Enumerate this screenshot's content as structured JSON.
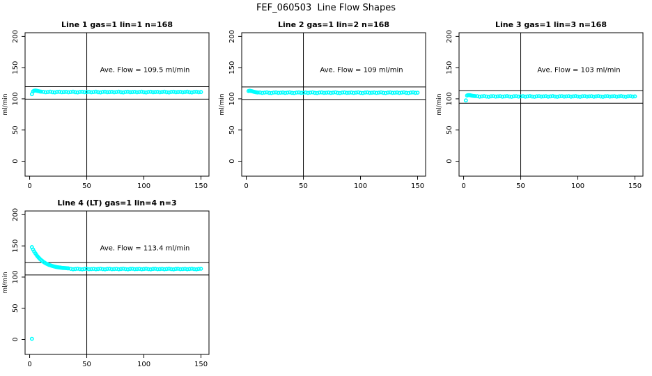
{
  "title": "FEF_060503  Line Flow Shapes",
  "colors": {
    "point": "#00FFFF",
    "line": "#000000",
    "background": "#FFFFFF"
  },
  "axes": {
    "x_ticks": [
      0,
      50,
      100,
      150
    ],
    "y_ticks": [
      0,
      50,
      100,
      150,
      200
    ],
    "xlim": [
      -4,
      157
    ],
    "ylim": [
      -24,
      206
    ],
    "y_label": "ml/min",
    "grid": false
  },
  "chart_data": [
    {
      "type": "scatter",
      "title": "Line 1 gas=1 lin=1 n=168",
      "annotation": "Ave. Flow =  109.5  ml/min",
      "ave_flow": 109.5,
      "n": 168,
      "hlines": [
        99.5,
        119.5
      ],
      "vline": 50,
      "ylabel": "ml/min",
      "points": [
        [
          2,
          107.5
        ],
        [
          3,
          112
        ],
        [
          4,
          113
        ],
        [
          5,
          113.3
        ],
        [
          6,
          113
        ],
        [
          7,
          112.5
        ],
        [
          8,
          112.2
        ],
        [
          9,
          111.8
        ],
        [
          10,
          111.5
        ],
        [
          12,
          111.2
        ],
        [
          14,
          110.5
        ],
        [
          16,
          111
        ],
        [
          18,
          111.4
        ],
        [
          20,
          110.7
        ],
        [
          22,
          110.3
        ],
        [
          24,
          111.1
        ],
        [
          26,
          111.3
        ],
        [
          28,
          110.6
        ],
        [
          30,
          110.9
        ],
        [
          32,
          111.2
        ],
        [
          34,
          110.5
        ],
        [
          36,
          111
        ],
        [
          38,
          111.4
        ],
        [
          40,
          110.7
        ],
        [
          42,
          110.3
        ],
        [
          44,
          111.1
        ],
        [
          46,
          111.3
        ],
        [
          48,
          110.6
        ],
        [
          50,
          110.9
        ],
        [
          52,
          111.2
        ],
        [
          54,
          110.5
        ],
        [
          56,
          111
        ],
        [
          58,
          111.4
        ],
        [
          60,
          110.7
        ],
        [
          62,
          110.3
        ],
        [
          64,
          111.1
        ],
        [
          66,
          111.3
        ],
        [
          68,
          110.6
        ],
        [
          70,
          110.9
        ],
        [
          72,
          111.2
        ],
        [
          74,
          110.5
        ],
        [
          76,
          111
        ],
        [
          78,
          111.4
        ],
        [
          80,
          110.7
        ],
        [
          82,
          110.3
        ],
        [
          84,
          111.1
        ],
        [
          86,
          111.3
        ],
        [
          88,
          110.6
        ],
        [
          90,
          110.9
        ],
        [
          92,
          111.2
        ],
        [
          94,
          110.5
        ],
        [
          96,
          111
        ],
        [
          98,
          111.4
        ],
        [
          100,
          110.7
        ],
        [
          102,
          110.3
        ],
        [
          104,
          111.1
        ],
        [
          106,
          111.3
        ],
        [
          108,
          110.6
        ],
        [
          110,
          110.9
        ],
        [
          112,
          111.2
        ],
        [
          114,
          110.5
        ],
        [
          116,
          111
        ],
        [
          118,
          111.4
        ],
        [
          120,
          110.7
        ],
        [
          122,
          110.3
        ],
        [
          124,
          111.1
        ],
        [
          126,
          111.3
        ],
        [
          128,
          110.6
        ],
        [
          130,
          110.9
        ],
        [
          132,
          111.2
        ],
        [
          134,
          110.5
        ],
        [
          136,
          111
        ],
        [
          138,
          111.4
        ],
        [
          140,
          110.7
        ],
        [
          142,
          110.3
        ],
        [
          144,
          111.1
        ],
        [
          146,
          111.3
        ],
        [
          148,
          110.6
        ],
        [
          150,
          110.9
        ]
      ]
    },
    {
      "type": "scatter",
      "title": "Line 2 gas=1 lin=2 n=168",
      "annotation": "Ave. Flow =  109  ml/min",
      "ave_flow": 109,
      "n": 168,
      "hlines": [
        99,
        119
      ],
      "vline": 50,
      "ylabel": "ml/min",
      "points": [
        [
          2,
          112.6
        ],
        [
          3,
          113
        ],
        [
          4,
          112.6
        ],
        [
          5,
          112.2
        ],
        [
          6,
          111.7
        ],
        [
          7,
          111.2
        ],
        [
          8,
          110.8
        ],
        [
          9,
          110.4
        ],
        [
          10,
          110.2
        ],
        [
          12,
          110.2
        ],
        [
          14,
          109.5
        ],
        [
          16,
          110
        ],
        [
          18,
          110.4
        ],
        [
          20,
          109.7
        ],
        [
          22,
          109.3
        ],
        [
          24,
          110.1
        ],
        [
          26,
          110.3
        ],
        [
          28,
          109.6
        ],
        [
          30,
          109.9
        ],
        [
          32,
          110.2
        ],
        [
          34,
          109.5
        ],
        [
          36,
          110
        ],
        [
          38,
          110.4
        ],
        [
          40,
          109.7
        ],
        [
          42,
          109.3
        ],
        [
          44,
          110.1
        ],
        [
          46,
          110.3
        ],
        [
          48,
          109.6
        ],
        [
          50,
          109.9
        ],
        [
          52,
          110.2
        ],
        [
          54,
          109.5
        ],
        [
          56,
          110
        ],
        [
          58,
          110.4
        ],
        [
          60,
          109.7
        ],
        [
          62,
          109.3
        ],
        [
          64,
          110.1
        ],
        [
          66,
          110.3
        ],
        [
          68,
          109.6
        ],
        [
          70,
          109.9
        ],
        [
          72,
          110.2
        ],
        [
          74,
          109.5
        ],
        [
          76,
          110
        ],
        [
          78,
          110.4
        ],
        [
          80,
          109.7
        ],
        [
          82,
          109.3
        ],
        [
          84,
          110.1
        ],
        [
          86,
          110.3
        ],
        [
          88,
          109.6
        ],
        [
          90,
          109.9
        ],
        [
          92,
          110.2
        ],
        [
          94,
          109.5
        ],
        [
          96,
          110
        ],
        [
          98,
          110.4
        ],
        [
          100,
          109.7
        ],
        [
          102,
          109.3
        ],
        [
          104,
          110.1
        ],
        [
          106,
          110.3
        ],
        [
          108,
          109.6
        ],
        [
          110,
          109.9
        ],
        [
          112,
          110.2
        ],
        [
          114,
          109.5
        ],
        [
          116,
          110
        ],
        [
          118,
          110.4
        ],
        [
          120,
          109.7
        ],
        [
          122,
          109.3
        ],
        [
          124,
          110.1
        ],
        [
          126,
          110.3
        ],
        [
          128,
          109.6
        ],
        [
          130,
          109.9
        ],
        [
          132,
          110.2
        ],
        [
          134,
          109.5
        ],
        [
          136,
          110
        ],
        [
          138,
          110.4
        ],
        [
          140,
          109.7
        ],
        [
          142,
          109.3
        ],
        [
          144,
          110.1
        ],
        [
          146,
          110.3
        ],
        [
          148,
          109.6
        ],
        [
          150,
          109.9
        ]
      ]
    },
    {
      "type": "scatter",
      "title": "Line 3 gas=1 lin=3 n=168",
      "annotation": "Ave. Flow =  103  ml/min",
      "ave_flow": 103,
      "n": 168,
      "hlines": [
        93,
        113
      ],
      "vline": 50,
      "ylabel": "ml/min",
      "points": [
        [
          2,
          97.5
        ],
        [
          3,
          105.3
        ],
        [
          4,
          106
        ],
        [
          5,
          106
        ],
        [
          6,
          105.6
        ],
        [
          7,
          105.2
        ],
        [
          8,
          104.9
        ],
        [
          9,
          104.6
        ],
        [
          10,
          104.4
        ],
        [
          12,
          104.2
        ],
        [
          14,
          103.5
        ],
        [
          16,
          104
        ],
        [
          18,
          104.4
        ],
        [
          20,
          103.7
        ],
        [
          22,
          103.3
        ],
        [
          24,
          104.1
        ],
        [
          26,
          104.3
        ],
        [
          28,
          103.6
        ],
        [
          30,
          103.9
        ],
        [
          32,
          104.2
        ],
        [
          34,
          103.5
        ],
        [
          36,
          104
        ],
        [
          38,
          104.4
        ],
        [
          40,
          103.7
        ],
        [
          42,
          103.3
        ],
        [
          44,
          104.1
        ],
        [
          46,
          104.3
        ],
        [
          48,
          103.6
        ],
        [
          50,
          103.9
        ],
        [
          52,
          104.2
        ],
        [
          54,
          103.5
        ],
        [
          56,
          104
        ],
        [
          58,
          104.4
        ],
        [
          60,
          103.7
        ],
        [
          62,
          103.3
        ],
        [
          64,
          104.1
        ],
        [
          66,
          104.3
        ],
        [
          68,
          103.6
        ],
        [
          70,
          103.9
        ],
        [
          72,
          104.2
        ],
        [
          74,
          103.5
        ],
        [
          76,
          104
        ],
        [
          78,
          104.4
        ],
        [
          80,
          103.7
        ],
        [
          82,
          103.3
        ],
        [
          84,
          104.1
        ],
        [
          86,
          104.3
        ],
        [
          88,
          103.6
        ],
        [
          90,
          103.9
        ],
        [
          92,
          104.2
        ],
        [
          94,
          103.5
        ],
        [
          96,
          104
        ],
        [
          98,
          104.4
        ],
        [
          100,
          103.7
        ],
        [
          102,
          103.3
        ],
        [
          104,
          104.1
        ],
        [
          106,
          104.3
        ],
        [
          108,
          103.6
        ],
        [
          110,
          103.9
        ],
        [
          112,
          104.2
        ],
        [
          114,
          103.5
        ],
        [
          116,
          104
        ],
        [
          118,
          104.4
        ],
        [
          120,
          103.7
        ],
        [
          122,
          103.3
        ],
        [
          124,
          104.1
        ],
        [
          126,
          104.3
        ],
        [
          128,
          103.6
        ],
        [
          130,
          103.9
        ],
        [
          132,
          104.2
        ],
        [
          134,
          103.5
        ],
        [
          136,
          104
        ],
        [
          138,
          104.4
        ],
        [
          140,
          103.7
        ],
        [
          142,
          103.3
        ],
        [
          144,
          104.1
        ],
        [
          146,
          104.3
        ],
        [
          148,
          103.6
        ],
        [
          150,
          103.9
        ]
      ]
    },
    {
      "type": "scatter",
      "title": "Line 4 (LT) gas=1 lin=4 n=3",
      "annotation": "Ave. Flow =  113.4  ml/min",
      "ave_flow": 113.4,
      "n": 3,
      "hlines": [
        103.4,
        123.4
      ],
      "vline": 50,
      "ylabel": "ml/min",
      "points": [
        [
          2,
          1
        ],
        [
          2,
          148
        ],
        [
          3,
          144.3
        ],
        [
          4,
          141
        ],
        [
          5,
          138.1
        ],
        [
          6,
          135.4
        ],
        [
          7,
          133.1
        ],
        [
          8,
          131
        ],
        [
          9,
          129.1
        ],
        [
          10,
          127.4
        ],
        [
          11,
          125.9
        ],
        [
          12,
          124.5
        ],
        [
          13,
          123.3
        ],
        [
          14,
          122.2
        ],
        [
          15,
          121.3
        ],
        [
          16,
          120.4
        ],
        [
          17,
          119.6
        ],
        [
          18,
          118.9
        ],
        [
          19,
          118.3
        ],
        [
          20,
          117.7
        ],
        [
          21,
          117.2
        ],
        [
          22,
          116.8
        ],
        [
          23,
          116.4
        ],
        [
          24,
          116
        ],
        [
          25,
          115.7
        ],
        [
          26,
          115.4
        ],
        [
          27,
          115.2
        ],
        [
          28,
          114.9
        ],
        [
          29,
          114.7
        ],
        [
          30,
          114.6
        ],
        [
          31,
          114.4
        ],
        [
          32,
          114.3
        ],
        [
          33,
          114.1
        ],
        [
          34,
          114
        ],
        [
          36,
          113.2
        ],
        [
          38,
          112.6
        ],
        [
          40,
          113
        ],
        [
          42,
          113.4
        ],
        [
          44,
          112.8
        ],
        [
          46,
          112.4
        ],
        [
          48,
          113.1
        ],
        [
          50,
          113.3
        ],
        [
          52,
          112.7
        ],
        [
          54,
          112.9
        ],
        [
          56,
          113.2
        ],
        [
          58,
          112.6
        ],
        [
          60,
          113
        ],
        [
          62,
          113.4
        ],
        [
          64,
          112.8
        ],
        [
          66,
          112.4
        ],
        [
          68,
          113.1
        ],
        [
          70,
          113.3
        ],
        [
          72,
          112.7
        ],
        [
          74,
          112.9
        ],
        [
          76,
          113.2
        ],
        [
          78,
          112.6
        ],
        [
          80,
          113
        ],
        [
          82,
          113.4
        ],
        [
          84,
          112.8
        ],
        [
          86,
          112.4
        ],
        [
          88,
          113.1
        ],
        [
          90,
          113.3
        ],
        [
          92,
          112.7
        ],
        [
          94,
          112.9
        ],
        [
          96,
          113.2
        ],
        [
          98,
          112.6
        ],
        [
          100,
          113
        ],
        [
          102,
          113.4
        ],
        [
          104,
          112.8
        ],
        [
          106,
          112.4
        ],
        [
          108,
          113.1
        ],
        [
          110,
          113.3
        ],
        [
          112,
          112.7
        ],
        [
          114,
          112.9
        ],
        [
          116,
          113.2
        ],
        [
          118,
          112.6
        ],
        [
          120,
          113
        ],
        [
          122,
          113.4
        ],
        [
          124,
          112.8
        ],
        [
          126,
          112.4
        ],
        [
          128,
          113.1
        ],
        [
          130,
          113.3
        ],
        [
          132,
          112.7
        ],
        [
          134,
          112.9
        ],
        [
          136,
          113.2
        ],
        [
          138,
          112.6
        ],
        [
          140,
          113
        ],
        [
          142,
          113.4
        ],
        [
          144,
          112.8
        ],
        [
          146,
          112.4
        ],
        [
          148,
          113.1
        ],
        [
          150,
          113.3
        ]
      ]
    }
  ]
}
